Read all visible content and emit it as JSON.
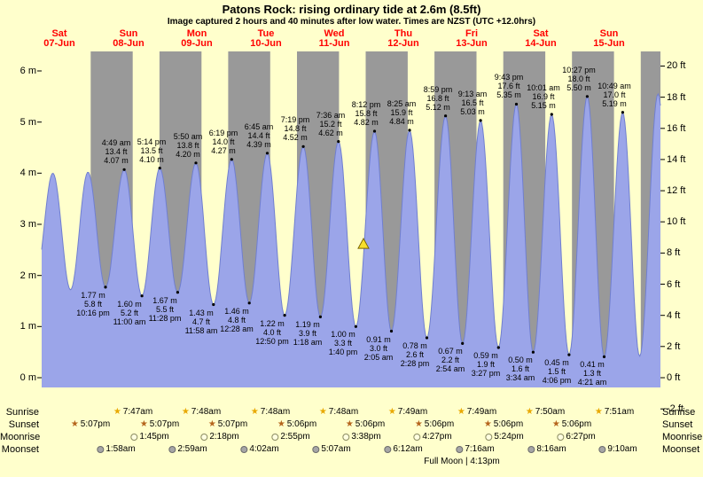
{
  "title": "Patons Rock: rising  ordinary tide at 2.6m (8.5ft)",
  "subtitle": "Image captured 2 hours and 40 minutes after low water. Times are NZST (UTC +12.0hrs)",
  "colors": {
    "background": "#ffffcc",
    "night_band": "#999999",
    "tide_fill": "#9ba5e9",
    "tide_stroke": "#707fd0",
    "date_label": "#ff0000",
    "marker_fill": "#f7df2a",
    "marker_stroke": "#7a6400"
  },
  "chart_data": {
    "type": "area",
    "title": "Patons Rock: rising ordinary tide at 2.6m (8.5ft)",
    "x_days": [
      {
        "name": "Sat",
        "date": "07-Jun"
      },
      {
        "name": "Sun",
        "date": "08-Jun"
      },
      {
        "name": "Mon",
        "date": "09-Jun"
      },
      {
        "name": "Tue",
        "date": "10-Jun"
      },
      {
        "name": "Wed",
        "date": "11-Jun"
      },
      {
        "name": "Thu",
        "date": "12-Jun"
      },
      {
        "name": "Fri",
        "date": "13-Jun"
      },
      {
        "name": "Sat",
        "date": "14-Jun"
      },
      {
        "name": "Sun",
        "date": "15-Jun"
      }
    ],
    "y_left_unit": "m",
    "y_left_ticks_m": [
      6,
      5,
      4,
      3,
      2,
      1,
      0
    ],
    "y_right_unit": "ft",
    "y_right_ticks_ft": [
      20,
      18,
      16,
      14,
      12,
      10,
      8,
      6,
      4,
      2,
      0,
      -2
    ],
    "night": {
      "sunset_hour": 17.12,
      "sunrise_hour": 7.8
    },
    "extremes": [
      {
        "t": -2.33,
        "m": 1.85,
        "type": "low",
        "labeled": false
      },
      {
        "t": 3.92,
        "m": 4.0,
        "type": "high",
        "labeled": false
      },
      {
        "t": 10.08,
        "m": 1.72,
        "type": "low",
        "labeled": false
      },
      {
        "t": 16.17,
        "m": 4.02,
        "type": "high",
        "labeled": false
      },
      {
        "t": 22.27,
        "m": 1.77,
        "ft": 5.8,
        "time": "10:16 pm",
        "type": "low",
        "labeled": true
      },
      {
        "t": 28.82,
        "m": 4.07,
        "ft": 13.4,
        "time": "4:49 am",
        "type": "high",
        "labeled": true
      },
      {
        "t": 35.0,
        "m": 1.6,
        "ft": 5.2,
        "time": "11:00 am",
        "type": "low",
        "labeled": true
      },
      {
        "t": 41.23,
        "m": 4.1,
        "ft": 13.5,
        "time": "5:14 pm",
        "type": "high",
        "labeled": true
      },
      {
        "t": 47.47,
        "m": 1.67,
        "ft": 5.5,
        "time": "11:28 pm",
        "type": "low",
        "labeled": true
      },
      {
        "t": 53.83,
        "m": 4.2,
        "ft": 13.8,
        "time": "5:50 am",
        "type": "high",
        "labeled": true
      },
      {
        "t": 59.97,
        "m": 1.43,
        "ft": 4.7,
        "time": "11:58 am",
        "type": "low",
        "labeled": true
      },
      {
        "t": 66.32,
        "m": 4.27,
        "ft": 14.0,
        "time": "6:19 pm",
        "type": "high",
        "labeled": true
      },
      {
        "t": 72.47,
        "m": 1.46,
        "ft": 4.8,
        "time": "12:28 am",
        "type": "low",
        "labeled": true
      },
      {
        "t": 78.75,
        "m": 4.39,
        "ft": 14.4,
        "time": "6:45 am",
        "type": "high",
        "labeled": true
      },
      {
        "t": 84.83,
        "m": 1.22,
        "ft": 4.0,
        "time": "12:50 pm",
        "type": "low",
        "labeled": true
      },
      {
        "t": 91.32,
        "m": 4.52,
        "ft": 14.8,
        "time": "7:19 pm",
        "type": "high",
        "labeled": true
      },
      {
        "t": 97.3,
        "m": 1.19,
        "ft": 3.9,
        "time": "1:18 am",
        "type": "low",
        "labeled": true
      },
      {
        "t": 103.6,
        "m": 4.62,
        "ft": 15.2,
        "time": "7:36 am",
        "type": "high",
        "labeled": true
      },
      {
        "t": 109.67,
        "m": 1.0,
        "ft": 3.3,
        "time": "1:40 pm",
        "type": "low",
        "labeled": true
      },
      {
        "t": 116.2,
        "m": 4.82,
        "ft": 15.8,
        "time": "8:12 pm",
        "type": "high",
        "labeled": true
      },
      {
        "t": 122.08,
        "m": 0.91,
        "ft": 3.0,
        "time": "2:05 am",
        "type": "low",
        "labeled": true
      },
      {
        "t": 128.42,
        "m": 4.84,
        "ft": 15.9,
        "time": "8:25 am",
        "type": "high",
        "labeled": true
      },
      {
        "t": 134.47,
        "m": 0.78,
        "ft": 2.6,
        "time": "2:28 pm",
        "type": "low",
        "labeled": true
      },
      {
        "t": 140.98,
        "m": 5.12,
        "ft": 16.8,
        "time": "8:59 pm",
        "type": "high",
        "labeled": true
      },
      {
        "t": 146.9,
        "m": 0.67,
        "ft": 2.2,
        "time": "2:54 am",
        "type": "low",
        "labeled": true
      },
      {
        "t": 153.22,
        "m": 5.03,
        "ft": 16.5,
        "time": "9:13 am",
        "type": "high",
        "labeled": true
      },
      {
        "t": 159.45,
        "m": 0.59,
        "ft": 1.9,
        "time": "3:27 pm",
        "type": "low",
        "labeled": true
      },
      {
        "t": 165.72,
        "m": 5.35,
        "ft": 17.6,
        "time": "9:43 pm",
        "type": "high",
        "labeled": true
      },
      {
        "t": 171.57,
        "m": 0.5,
        "ft": 1.6,
        "time": "3:34 am",
        "type": "low",
        "labeled": true
      },
      {
        "t": 178.02,
        "m": 5.15,
        "ft": 16.9,
        "time": "10:01 am",
        "type": "high",
        "labeled": true
      },
      {
        "t": 184.1,
        "m": 0.45,
        "ft": 1.5,
        "time": "4:06 pm",
        "type": "low",
        "labeled": true
      },
      {
        "t": 190.45,
        "m": 5.5,
        "ft": 18.0,
        "time": "10:27 pm",
        "type": "high",
        "labeled": true
      },
      {
        "t": 196.35,
        "m": 0.41,
        "ft": 1.3,
        "time": "4:21 am",
        "type": "low",
        "labeled": true
      },
      {
        "t": 202.82,
        "m": 5.19,
        "ft": 17.0,
        "time": "10:49 am",
        "type": "high",
        "labeled": true
      },
      {
        "t": 208.75,
        "m": 0.42,
        "type": "low",
        "labeled": false
      },
      {
        "t": 215.17,
        "m": 5.55,
        "type": "high",
        "labeled": false
      },
      {
        "t": 221.33,
        "m": 0.4,
        "type": "low",
        "labeled": false
      }
    ],
    "current_marker": {
      "day_index": 4,
      "time": "4:20 pm",
      "height_m": 2.6
    }
  },
  "astro": {
    "rows": [
      {
        "label": "Sunrise",
        "icon": "sunrise-star-icon",
        "icon_color": "#e8a800",
        "start_day": 1,
        "times": [
          "7:47am",
          "7:48am",
          "7:48am",
          "7:48am",
          "7:49am",
          "7:49am",
          "7:50am",
          "7:51am"
        ]
      },
      {
        "label": "Sunset",
        "icon": "sunset-star-icon",
        "icon_color": "#b5651d",
        "start_day": 0,
        "times": [
          "5:07pm",
          "5:07pm",
          "5:07pm",
          "5:06pm",
          "5:06pm",
          "5:06pm",
          "5:06pm",
          "5:06pm"
        ]
      },
      {
        "label": "Moonrise",
        "icon": "moonrise-circle-icon",
        "icon_color": "#ffffe0",
        "icon_border": "#8b8b62",
        "start_day": 1,
        "times": [
          "1:45pm",
          "2:18pm",
          "2:55pm",
          "3:38pm",
          "4:27pm",
          "5:24pm",
          "6:27pm"
        ]
      },
      {
        "label": "Moonset",
        "icon": "moonset-circle-icon",
        "icon_color": "#a6a6a6",
        "icon_border": "#6b6b6b",
        "start_day": 1,
        "times": [
          "1:58am",
          "2:59am",
          "4:02am",
          "5:07am",
          "6:12am",
          "7:16am",
          "8:16am",
          "9:10am"
        ]
      }
    ],
    "moon_phase": "Full Moon | 4:13pm"
  }
}
